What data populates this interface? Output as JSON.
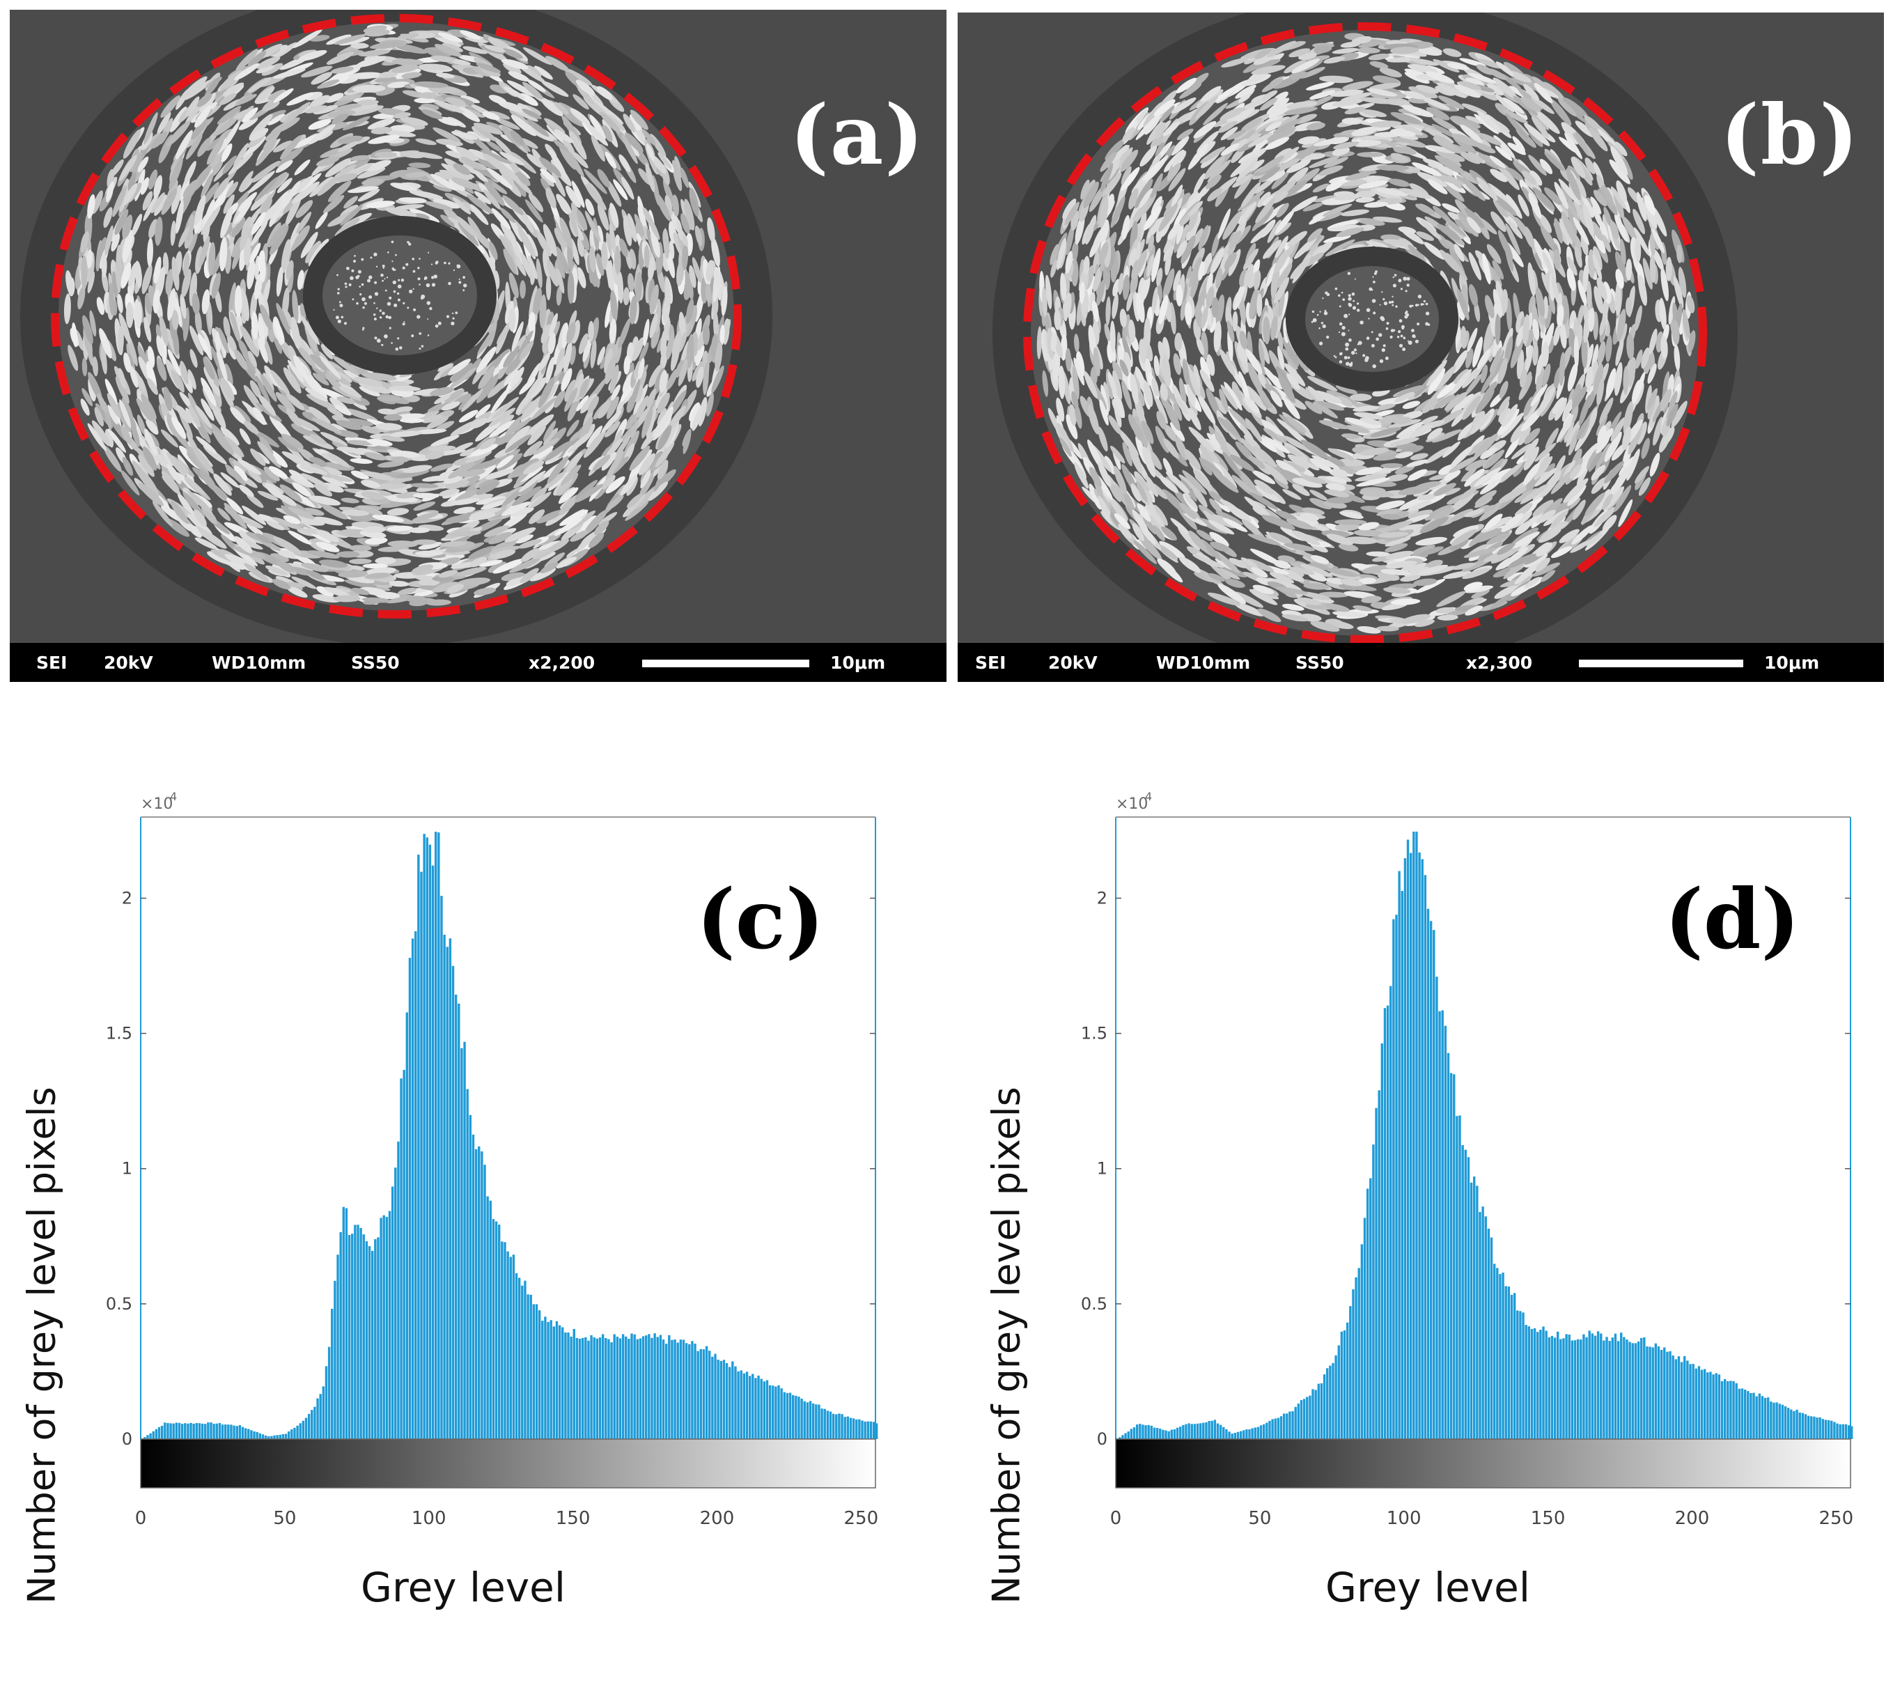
{
  "figure": {
    "panels": [
      {
        "id": "a",
        "label": "(a)",
        "info_bar": {
          "mode": "SEI",
          "voltage": "20kV",
          "working_distance": "WD10mm",
          "spot_size": "SS50",
          "magnification": "x2,200",
          "scale": "10μm"
        }
      },
      {
        "id": "b",
        "label": "(b)",
        "info_bar": {
          "mode": "SEI",
          "voltage": "20kV",
          "working_distance": "WD10mm",
          "spot_size": "SS50",
          "magnification": "x2,300",
          "scale": "10μm"
        }
      }
    ]
  },
  "colors": {
    "bar": "#1f9bd7",
    "axis_line": "#1f9bd7",
    "dashed_ellipse": "#e0151a",
    "sem_bg": "#4a4a4a"
  },
  "chart_data": [
    {
      "type": "bar",
      "panel_label": "(c)",
      "title": "",
      "xlabel": "Grey level",
      "ylabel": "Number of grey level pixels",
      "exponent_label": "×10",
      "exponent_power": "4",
      "xlim": [
        0,
        255
      ],
      "ylim": [
        0,
        2.3
      ],
      "xticks": [
        0,
        50,
        100,
        150,
        200,
        250
      ],
      "xtick_labels": [
        "0",
        "50",
        "100",
        "150",
        "200",
        "250"
      ],
      "yticks": [
        0,
        0.5,
        1,
        1.5,
        2
      ],
      "ytick_labels": [
        "0",
        "0.5",
        "1",
        "1.5",
        "2"
      ],
      "colorbar": "grayscale 0-255",
      "grey_levels": [
        0,
        8,
        25,
        34,
        44,
        50,
        55,
        60,
        63,
        65,
        67,
        70,
        72,
        75,
        78,
        80,
        83,
        86,
        88,
        90,
        93,
        96,
        99,
        101,
        103,
        105,
        107,
        109,
        112,
        115,
        118,
        121,
        125,
        130,
        135,
        140,
        145,
        150,
        155,
        160,
        170,
        180,
        185,
        190,
        195,
        200,
        210,
        220,
        230,
        240,
        250,
        255
      ],
      "counts": [
        0,
        0.06,
        0.06,
        0.05,
        0.01,
        0.02,
        0.06,
        0.12,
        0.2,
        0.35,
        0.6,
        0.9,
        0.8,
        0.78,
        0.72,
        0.7,
        0.85,
        0.87,
        1.0,
        1.3,
        1.8,
        2.1,
        2.25,
        2.25,
        2.2,
        2.0,
        1.85,
        1.65,
        1.45,
        1.2,
        1.05,
        0.9,
        0.78,
        0.65,
        0.55,
        0.45,
        0.42,
        0.4,
        0.39,
        0.38,
        0.38,
        0.38,
        0.37,
        0.36,
        0.34,
        0.31,
        0.25,
        0.2,
        0.15,
        0.1,
        0.07,
        0.06
      ]
    },
    {
      "type": "bar",
      "panel_label": "(d)",
      "title": "",
      "xlabel": "Grey level",
      "ylabel": "Number of grey level pixels",
      "exponent_label": "×10",
      "exponent_power": "4",
      "xlim": [
        0,
        255
      ],
      "ylim": [
        0,
        2.3
      ],
      "xticks": [
        0,
        50,
        100,
        150,
        200,
        250
      ],
      "xtick_labels": [
        "0",
        "50",
        "100",
        "150",
        "200",
        "250"
      ],
      "yticks": [
        0,
        0.5,
        1,
        1.5,
        2
      ],
      "ytick_labels": [
        "0",
        "0.5",
        "1",
        "1.5",
        "2"
      ],
      "colorbar": "grayscale 0-255",
      "grey_levels": [
        0,
        8,
        18,
        25,
        28,
        34,
        40,
        50,
        55,
        60,
        65,
        70,
        75,
        80,
        85,
        88,
        91,
        94,
        97,
        100,
        102,
        104,
        106,
        108,
        110,
        113,
        116,
        120,
        124,
        128,
        132,
        137,
        142,
        150,
        160,
        170,
        178,
        185,
        190,
        195,
        200,
        210,
        220,
        230,
        240,
        250,
        255
      ],
      "counts": [
        0,
        0.06,
        0.03,
        0.06,
        0.06,
        0.07,
        0.02,
        0.05,
        0.08,
        0.1,
        0.15,
        0.2,
        0.3,
        0.45,
        0.7,
        1.0,
        1.35,
        1.7,
        2.0,
        2.2,
        2.25,
        2.22,
        2.15,
        2.0,
        1.85,
        1.6,
        1.4,
        1.15,
        0.95,
        0.8,
        0.65,
        0.55,
        0.45,
        0.4,
        0.39,
        0.39,
        0.38,
        0.36,
        0.34,
        0.31,
        0.28,
        0.23,
        0.18,
        0.13,
        0.09,
        0.06,
        0.05
      ]
    }
  ]
}
